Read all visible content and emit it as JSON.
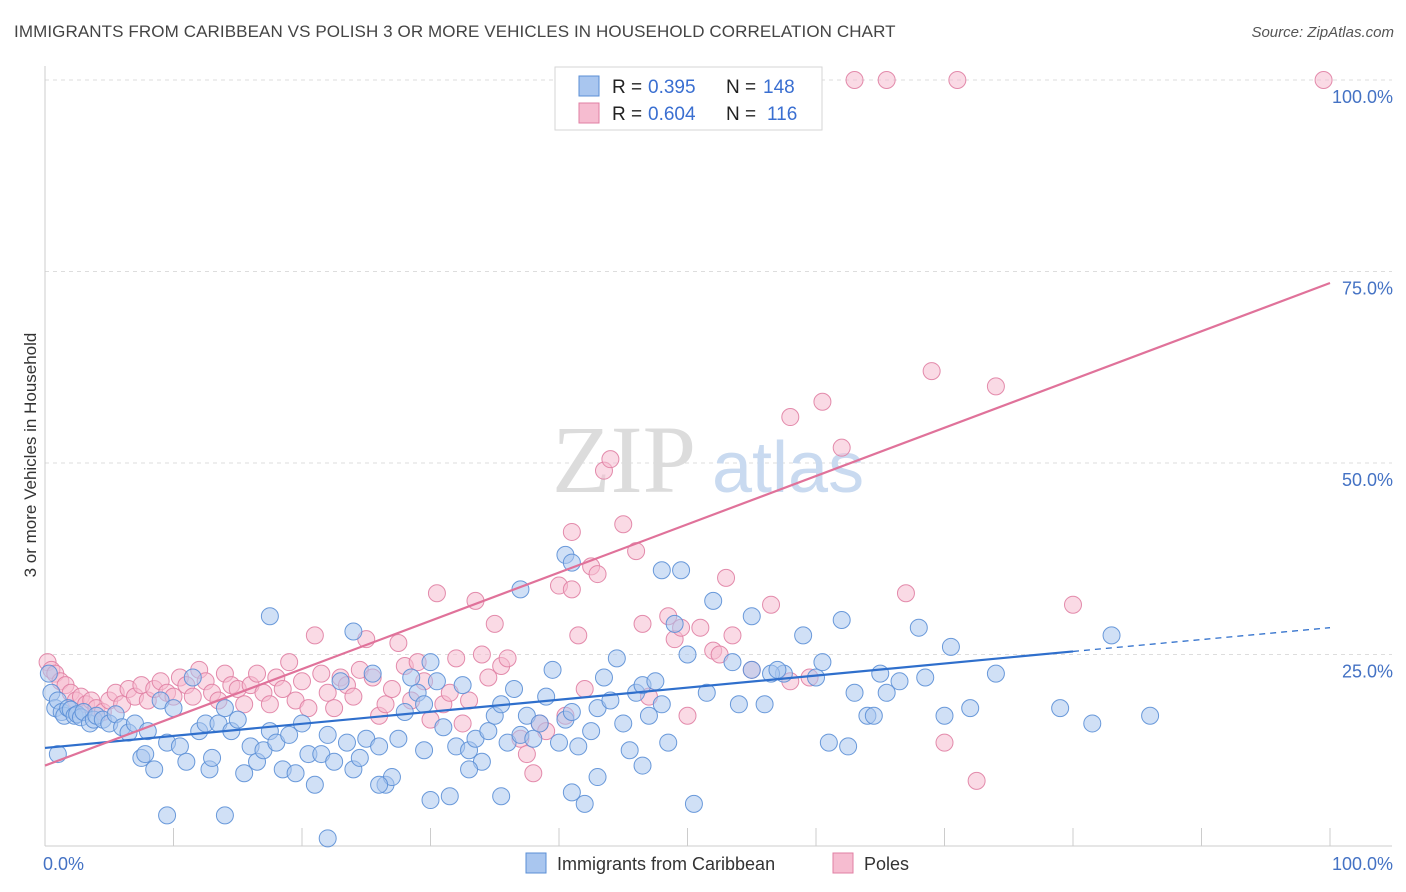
{
  "title": "IMMIGRANTS FROM CARIBBEAN VS POLISH 3 OR MORE VEHICLES IN HOUSEHOLD CORRELATION CHART",
  "source": "Source: ZipAtlas.com",
  "watermark": {
    "zip": "ZIP",
    "atlas": "atlas"
  },
  "colors": {
    "blue_fill": "#a9c6ef",
    "blue_stroke": "#5b8fd6",
    "blue_line": "#2f6fcc",
    "pink_fill": "#f6bcd0",
    "pink_stroke": "#e07fa3",
    "pink_line": "#e0729a",
    "tick_blue": "#4472c4",
    "grid": "#dddddd"
  },
  "legend": {
    "blue": {
      "r_label": "R =",
      "r_value": "0.395",
      "n_label": "N =",
      "n_value": "148"
    },
    "pink": {
      "r_label": "R =",
      "r_value": "0.604",
      "n_label": "N =",
      "n_value": "116"
    }
  },
  "chart_data": {
    "type": "scatter",
    "ylabel": "3 or more Vehicles in Household",
    "xlim": [
      0,
      100
    ],
    "ylim": [
      0,
      100
    ],
    "x_tick_labels": [
      {
        "value": 0,
        "label": "0.0%"
      },
      {
        "value": 100,
        "label": "100.0%"
      }
    ],
    "y_tick_labels": [
      {
        "value": 100,
        "label": "100.0%"
      },
      {
        "value": 75,
        "label": "75.0%"
      },
      {
        "value": 50,
        "label": "50.0%"
      },
      {
        "value": 25,
        "label": "25.0%"
      }
    ],
    "y_grid": [
      25,
      50,
      75,
      100
    ],
    "series": [
      {
        "name": "Immigrants from Caribbean",
        "color": "#a9c6ef",
        "trend": {
          "x0": 0,
          "y0": 12.8,
          "x1": 80,
          "y1": 25.4,
          "dashed_to_x": 100,
          "dashed_to_y": 28.5
        },
        "points": [
          [
            0.3,
            22.5
          ],
          [
            0.5,
            20.0
          ],
          [
            0.8,
            18.0
          ],
          [
            1.0,
            19.0
          ],
          [
            1.3,
            17.5
          ],
          [
            1.5,
            17.0
          ],
          [
            1.8,
            18.0
          ],
          [
            2.0,
            17.8
          ],
          [
            2.3,
            17.0
          ],
          [
            2.5,
            17.2
          ],
          [
            2.8,
            16.8
          ],
          [
            3.0,
            17.5
          ],
          [
            3.5,
            16.0
          ],
          [
            3.8,
            16.5
          ],
          [
            4.0,
            17.0
          ],
          [
            4.5,
            16.5
          ],
          [
            5.0,
            16.0
          ],
          [
            5.5,
            17.2
          ],
          [
            6.0,
            15.5
          ],
          [
            6.5,
            14.8
          ],
          [
            1.0,
            12.0
          ],
          [
            7.0,
            16.0
          ],
          [
            7.5,
            11.5
          ],
          [
            7.8,
            12.0
          ],
          [
            8.0,
            15.0
          ],
          [
            8.5,
            10.0
          ],
          [
            9.0,
            19.0
          ],
          [
            9.5,
            13.5
          ],
          [
            10.0,
            18.0
          ],
          [
            10.5,
            13.0
          ],
          [
            11.0,
            11.0
          ],
          [
            11.5,
            22.0
          ],
          [
            12.0,
            15.0
          ],
          [
            12.5,
            16.0
          ],
          [
            12.8,
            10.0
          ],
          [
            13.0,
            11.5
          ],
          [
            13.5,
            16.0
          ],
          [
            14.0,
            18.0
          ],
          [
            14.5,
            15.0
          ],
          [
            15.0,
            16.5
          ],
          [
            15.5,
            9.5
          ],
          [
            16.0,
            13.0
          ],
          [
            16.5,
            11.0
          ],
          [
            17.0,
            12.5
          ],
          [
            17.5,
            15.0
          ],
          [
            18.0,
            13.5
          ],
          [
            18.5,
            10.0
          ],
          [
            19.0,
            14.5
          ],
          [
            19.5,
            9.5
          ],
          [
            20.0,
            16.0
          ],
          [
            20.5,
            12.0
          ],
          [
            21.0,
            8.0
          ],
          [
            21.5,
            12.0
          ],
          [
            22.0,
            14.5
          ],
          [
            22.5,
            11.0
          ],
          [
            23.0,
            21.5
          ],
          [
            23.5,
            13.5
          ],
          [
            24.0,
            10.0
          ],
          [
            24.5,
            11.5
          ],
          [
            25.0,
            14.0
          ],
          [
            25.5,
            22.5
          ],
          [
            26.0,
            13.0
          ],
          [
            26.5,
            8.0
          ],
          [
            27.0,
            9.0
          ],
          [
            27.5,
            14.0
          ],
          [
            28.0,
            17.5
          ],
          [
            28.5,
            22.0
          ],
          [
            29.0,
            20.0
          ],
          [
            29.5,
            18.5
          ],
          [
            30.0,
            24.0
          ],
          [
            30.5,
            21.5
          ],
          [
            31.0,
            15.5
          ],
          [
            31.5,
            6.5
          ],
          [
            32.0,
            13.0
          ],
          [
            32.5,
            21.0
          ],
          [
            33.0,
            12.5
          ],
          [
            33.5,
            14.0
          ],
          [
            34.0,
            11.0
          ],
          [
            34.5,
            15.0
          ],
          [
            35.0,
            17.0
          ],
          [
            35.5,
            18.5
          ],
          [
            36.0,
            13.5
          ],
          [
            36.5,
            20.5
          ],
          [
            37.0,
            14.5
          ],
          [
            37.5,
            17.0
          ],
          [
            38.0,
            14.0
          ],
          [
            38.5,
            16.0
          ],
          [
            39.0,
            19.5
          ],
          [
            39.5,
            23.0
          ],
          [
            40.0,
            13.5
          ],
          [
            40.5,
            16.5
          ],
          [
            41.0,
            17.5
          ],
          [
            41.5,
            13.0
          ],
          [
            42.0,
            5.5
          ],
          [
            42.5,
            15.0
          ],
          [
            43.0,
            18.0
          ],
          [
            43.5,
            22.0
          ],
          [
            44.0,
            19.0
          ],
          [
            44.5,
            24.5
          ],
          [
            45.0,
            16.0
          ],
          [
            45.5,
            12.5
          ],
          [
            46.0,
            20.0
          ],
          [
            46.5,
            21.0
          ],
          [
            47.0,
            17.0
          ],
          [
            47.5,
            21.5
          ],
          [
            48.0,
            18.5
          ],
          [
            48.5,
            13.5
          ],
          [
            49.0,
            29.0
          ],
          [
            49.5,
            36.0
          ],
          [
            50.0,
            25.0
          ],
          [
            51.5,
            20.0
          ],
          [
            53.5,
            24.0
          ],
          [
            54.0,
            18.5
          ],
          [
            55.0,
            23.0
          ],
          [
            56.0,
            18.5
          ],
          [
            57.5,
            22.5
          ],
          [
            59.0,
            27.5
          ],
          [
            60.0,
            22.0
          ],
          [
            61.0,
            13.5
          ],
          [
            62.5,
            13.0
          ],
          [
            64.0,
            17.0
          ],
          [
            65.5,
            20.0
          ],
          [
            66.5,
            21.5
          ],
          [
            68.5,
            22.0
          ],
          [
            70.0,
            17.0
          ],
          [
            72.0,
            18.0
          ],
          [
            79.0,
            18.0
          ],
          [
            81.5,
            16.0
          ],
          [
            86.0,
            17.0
          ],
          [
            83.0,
            27.5
          ],
          [
            17.5,
            30.0
          ],
          [
            24.0,
            28.0
          ],
          [
            37.0,
            33.5
          ],
          [
            40.5,
            38.0
          ],
          [
            41.0,
            37.0
          ],
          [
            48.0,
            36.0
          ],
          [
            52.0,
            32.0
          ],
          [
            56.5,
            22.5
          ],
          [
            63.0,
            20.0
          ],
          [
            64.5,
            17.0
          ],
          [
            9.5,
            4.0
          ],
          [
            14.0,
            4.0
          ],
          [
            22.0,
            1.0
          ],
          [
            26.0,
            8.0
          ],
          [
            30.0,
            6.0
          ],
          [
            35.5,
            6.5
          ],
          [
            41.0,
            7.0
          ],
          [
            50.5,
            5.5
          ],
          [
            55.0,
            30.0
          ],
          [
            57.0,
            23.0
          ],
          [
            60.5,
            24.0
          ],
          [
            62.0,
            29.5
          ],
          [
            65.0,
            22.5
          ],
          [
            68.0,
            28.5
          ],
          [
            70.5,
            26.0
          ],
          [
            74.0,
            22.5
          ],
          [
            29.5,
            12.5
          ],
          [
            33.0,
            10.0
          ],
          [
            46.5,
            10.5
          ],
          [
            43.0,
            9.0
          ]
        ]
      },
      {
        "name": "Poles",
        "color": "#f6bcd0",
        "trend": {
          "x0": 0,
          "y0": 10.5,
          "x1": 100,
          "y1": 73.5
        },
        "points": [
          [
            0.2,
            24.0
          ],
          [
            0.5,
            23.0
          ],
          [
            0.8,
            22.5
          ],
          [
            1.2,
            21.5
          ],
          [
            1.6,
            21.0
          ],
          [
            2.0,
            20.0
          ],
          [
            2.4,
            19.0
          ],
          [
            2.8,
            19.5
          ],
          [
            3.2,
            18.5
          ],
          [
            3.6,
            19.0
          ],
          [
            4.0,
            18.0
          ],
          [
            4.5,
            17.5
          ],
          [
            5.0,
            19.0
          ],
          [
            5.5,
            20.0
          ],
          [
            6.0,
            18.5
          ],
          [
            6.5,
            20.5
          ],
          [
            7.0,
            19.5
          ],
          [
            7.5,
            21.0
          ],
          [
            8.0,
            19.0
          ],
          [
            8.5,
            20.5
          ],
          [
            9.0,
            21.5
          ],
          [
            9.5,
            20.0
          ],
          [
            10.0,
            19.5
          ],
          [
            10.5,
            22.0
          ],
          [
            11.0,
            21.0
          ],
          [
            11.5,
            19.5
          ],
          [
            12.0,
            23.0
          ],
          [
            12.5,
            21.5
          ],
          [
            13.0,
            20.0
          ],
          [
            13.5,
            19.0
          ],
          [
            14.0,
            22.5
          ],
          [
            14.5,
            21.0
          ],
          [
            15.0,
            20.5
          ],
          [
            15.5,
            18.5
          ],
          [
            16.0,
            21.0
          ],
          [
            16.5,
            22.5
          ],
          [
            17.0,
            20.0
          ],
          [
            17.5,
            18.5
          ],
          [
            18.0,
            22.0
          ],
          [
            18.5,
            20.5
          ],
          [
            19.0,
            24.0
          ],
          [
            19.5,
            19.0
          ],
          [
            20.0,
            21.5
          ],
          [
            20.5,
            18.0
          ],
          [
            21.0,
            27.5
          ],
          [
            21.5,
            22.5
          ],
          [
            22.0,
            20.0
          ],
          [
            22.5,
            18.0
          ],
          [
            23.0,
            22.0
          ],
          [
            23.5,
            21.0
          ],
          [
            24.0,
            19.5
          ],
          [
            24.5,
            23.0
          ],
          [
            25.0,
            27.0
          ],
          [
            25.5,
            22.0
          ],
          [
            26.0,
            17.0
          ],
          [
            26.5,
            18.5
          ],
          [
            27.0,
            20.5
          ],
          [
            27.5,
            26.5
          ],
          [
            28.0,
            23.5
          ],
          [
            28.5,
            19.0
          ],
          [
            29.0,
            24.0
          ],
          [
            29.5,
            21.5
          ],
          [
            30.0,
            16.5
          ],
          [
            30.5,
            33.0
          ],
          [
            31.0,
            18.5
          ],
          [
            31.5,
            20.0
          ],
          [
            32.0,
            24.5
          ],
          [
            32.5,
            16.0
          ],
          [
            33.0,
            19.0
          ],
          [
            33.5,
            32.0
          ],
          [
            34.0,
            25.0
          ],
          [
            34.5,
            22.0
          ],
          [
            35.0,
            29.0
          ],
          [
            35.5,
            23.5
          ],
          [
            36.0,
            24.5
          ],
          [
            37.0,
            14.0
          ],
          [
            37.5,
            12.0
          ],
          [
            38.0,
            9.5
          ],
          [
            38.5,
            16.0
          ],
          [
            39.0,
            15.0
          ],
          [
            40.0,
            34.0
          ],
          [
            40.5,
            17.0
          ],
          [
            41.0,
            33.5
          ],
          [
            41.5,
            27.5
          ],
          [
            42.0,
            20.5
          ],
          [
            42.5,
            36.5
          ],
          [
            43.0,
            35.5
          ],
          [
            43.5,
            49.0
          ],
          [
            44.0,
            50.5
          ],
          [
            45.0,
            42.0
          ],
          [
            46.0,
            38.5
          ],
          [
            46.5,
            29.0
          ],
          [
            47.0,
            19.5
          ],
          [
            48.5,
            30.0
          ],
          [
            49.0,
            27.0
          ],
          [
            49.5,
            28.5
          ],
          [
            50.0,
            17.0
          ],
          [
            51.0,
            28.5
          ],
          [
            52.0,
            25.5
          ],
          [
            52.5,
            25.0
          ],
          [
            53.5,
            27.5
          ],
          [
            55.0,
            23.0
          ],
          [
            56.5,
            31.5
          ],
          [
            58.0,
            21.5
          ],
          [
            59.5,
            22.0
          ],
          [
            60.5,
            58.0
          ],
          [
            62.0,
            52.0
          ],
          [
            67.0,
            33.0
          ],
          [
            69.0,
            62.0
          ],
          [
            70.0,
            13.5
          ],
          [
            72.5,
            8.5
          ],
          [
            74.0,
            60.0
          ],
          [
            80.0,
            31.5
          ],
          [
            41.0,
            41.0
          ],
          [
            53.0,
            35.0
          ],
          [
            58.0,
            56.0
          ],
          [
            63.0,
            100.0
          ],
          [
            65.5,
            100.0
          ],
          [
            71.0,
            100.0
          ],
          [
            99.5,
            100.0
          ]
        ]
      }
    ]
  },
  "bottom_legend": [
    {
      "label": "Immigrants from Caribbean"
    },
    {
      "label": "Poles"
    }
  ]
}
